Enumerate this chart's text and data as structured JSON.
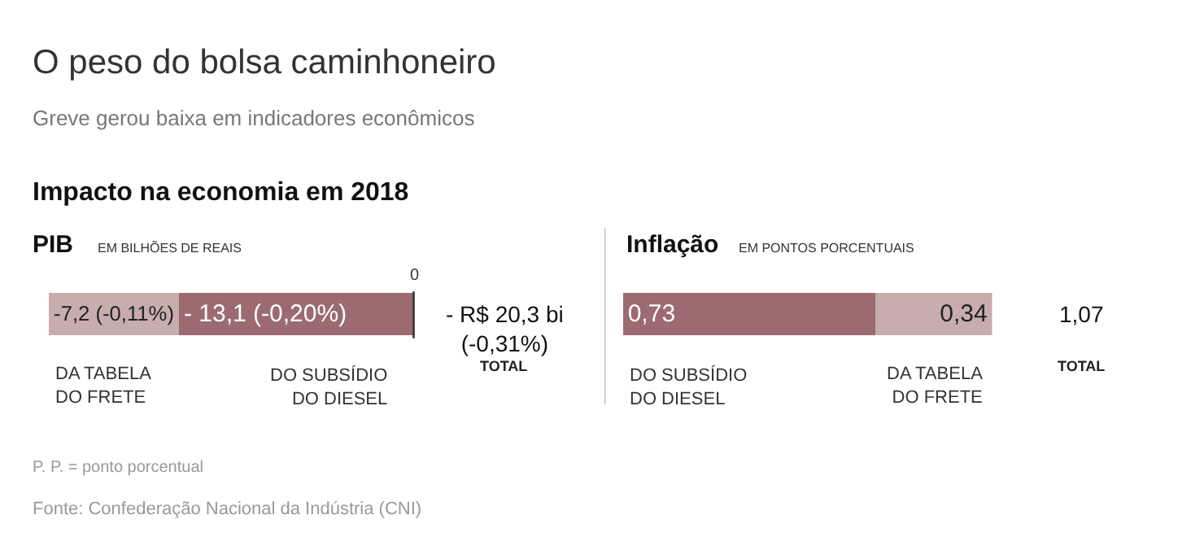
{
  "chart_data": [
    {
      "type": "bar",
      "orientation": "horizontal",
      "stacked": true,
      "title": "PIB",
      "subtitle": "EM BILHÕES DE REAIS",
      "categories": [
        null
      ],
      "series": [
        {
          "name": "DO SUBSÍDIO\nDO DIESEL",
          "color": "#9b6b6f",
          "values": [
            -13.1
          ],
          "value_labels": [
            "- 13,1 (-0,20%)"
          ]
        },
        {
          "name": "DA TABELA\nDO FRETE",
          "color": "#c8adae",
          "values": [
            -7.2
          ],
          "value_labels": [
            "-7,2 (-0,11%)"
          ]
        }
      ],
      "totals": [
        "- R$ 20,3 bi\n(-0,31%)"
      ],
      "ref_lines": [
        {
          "axis": "x",
          "value": 0,
          "label": "0",
          "color": "#333333"
        }
      ],
      "legend": false,
      "annotations": [
        "O peso do bolsa caminhoneiro",
        "Greve gerou baixa em indicadores econômicos",
        "Impacto na economia em 2018",
        "TOTAL",
        "P. P. = ponto porcentual",
        "Fonte: Confederação Nacional da Indústria (CNI)"
      ]
    },
    {
      "type": "bar",
      "orientation": "horizontal",
      "stacked": true,
      "title": "Inflação",
      "subtitle": "EM PONTOS PORCENTUAIS",
      "categories": [
        null
      ],
      "series": [
        {
          "name": "DO SUBSÍDIO\nDO DIESEL",
          "color": "#9b6b6f",
          "values": [
            0.73
          ],
          "value_labels": [
            "0,73"
          ]
        },
        {
          "name": "DA TABELA\nDO FRETE",
          "color": "#c8adae",
          "values": [
            0.34
          ],
          "value_labels": [
            "0,34"
          ]
        }
      ],
      "totals": [
        "1,07"
      ],
      "legend": false,
      "annotations": [
        "TOTAL"
      ]
    }
  ]
}
